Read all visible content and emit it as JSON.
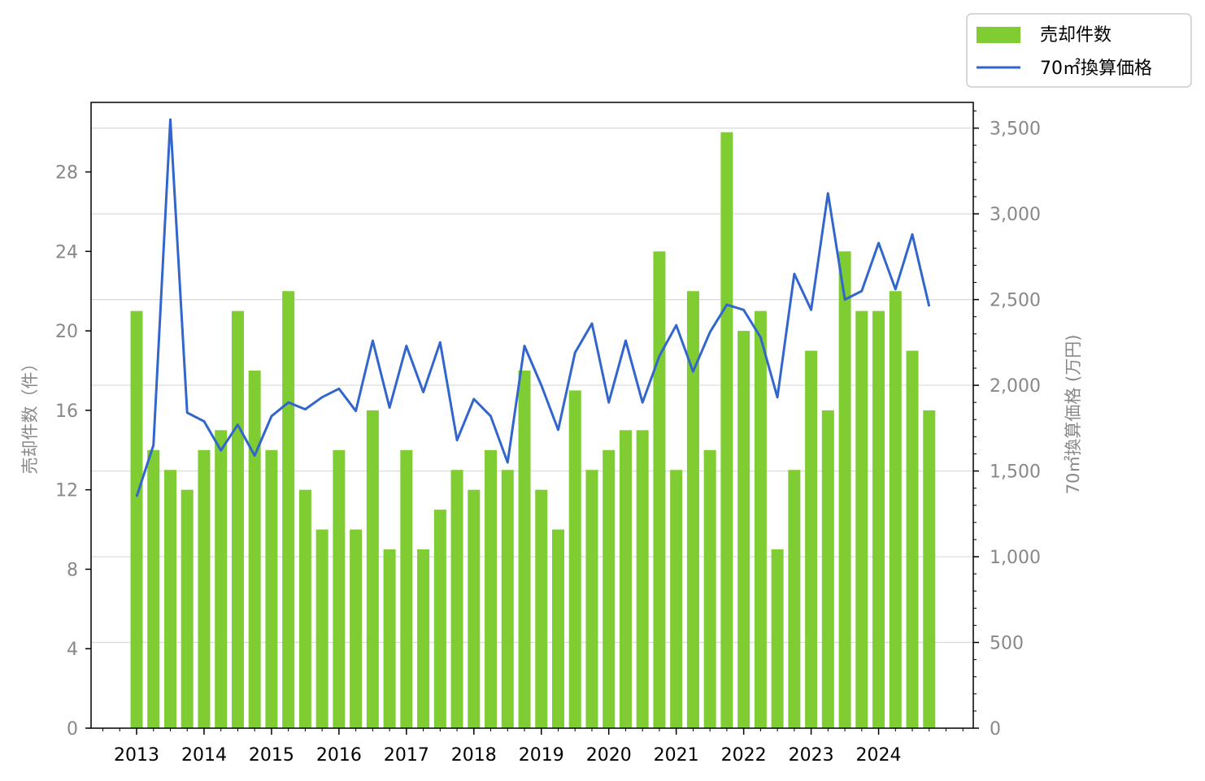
{
  "chart_data": {
    "type": "bar",
    "x_tick_labels": [
      "2013",
      "2014",
      "2015",
      "2016",
      "2017",
      "2018",
      "2019",
      "2020",
      "2021",
      "2022",
      "2023",
      "2024"
    ],
    "y_left": {
      "label": "売却件数（件）",
      "ylim": [
        0,
        31.5
      ],
      "ticks": [
        0,
        4,
        8,
        12,
        16,
        20,
        24,
        28
      ],
      "tick_labels": [
        "0",
        "4",
        "8",
        "12",
        "16",
        "20",
        "24",
        "28"
      ]
    },
    "y_right": {
      "label": "70㎡換算価格 (万円)",
      "ylim": [
        0,
        3650
      ],
      "ticks": [
        0,
        500,
        1000,
        1500,
        2000,
        2500,
        3000,
        3500
      ],
      "tick_labels": [
        "0",
        "500",
        "1,000",
        "1,500",
        "2,000",
        "2,500",
        "3,000",
        "3,500"
      ]
    },
    "grid": "horizontal",
    "legend_position": "top-right, outside",
    "series": [
      {
        "name": "売却件数",
        "type": "bar",
        "axis": "left",
        "color": "#80cc33",
        "values": [
          21,
          14,
          13,
          12,
          14,
          15,
          21,
          18,
          14,
          22,
          12,
          10,
          14,
          10,
          16,
          9,
          14,
          9,
          11,
          13,
          12,
          14,
          13,
          18,
          12,
          10,
          17,
          13,
          14,
          15,
          15,
          24,
          13,
          22,
          14,
          30,
          20,
          21,
          9,
          13,
          19,
          16,
          24,
          21,
          21,
          22,
          19,
          16
        ]
      },
      {
        "name": "70㎡換算価格",
        "type": "line",
        "axis": "right",
        "color": "#3366cc",
        "values": [
          1350,
          1650,
          3550,
          1840,
          1790,
          1620,
          1770,
          1590,
          1820,
          1900,
          1860,
          1930,
          1980,
          1850,
          2260,
          1870,
          2230,
          1960,
          2250,
          1680,
          1920,
          1820,
          1550,
          2230,
          2000,
          1740,
          2190,
          2360,
          1900,
          2260,
          1900,
          2170,
          2350,
          2080,
          2310,
          2470,
          2440,
          2280,
          1930,
          2650,
          2440,
          3120,
          2500,
          2550,
          2830,
          2560,
          2880,
          2460
        ]
      }
    ]
  }
}
